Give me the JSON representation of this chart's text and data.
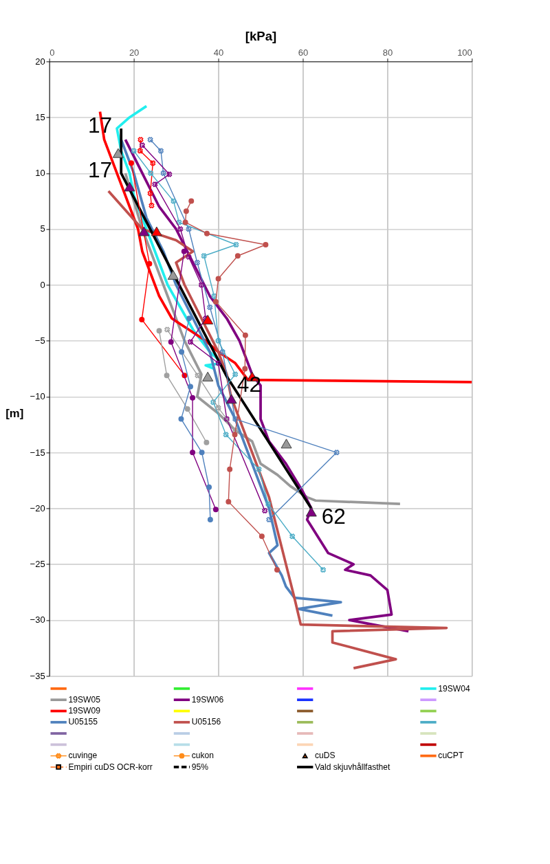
{
  "chart_data": {
    "type": "line",
    "xlabel": "[kPa]",
    "ylabel": "[m]",
    "xlim": [
      0,
      100
    ],
    "xticks": [
      0,
      20,
      40,
      60,
      80,
      100
    ],
    "ylim": [
      -35,
      20
    ],
    "yticks": [
      -35,
      -30,
      -25,
      -20,
      -15,
      -10,
      -5,
      0,
      5,
      10,
      15,
      20
    ],
    "grid": true,
    "legend": "bottom",
    "annotations": [
      {
        "text": "17",
        "x": 17,
        "y": 14
      },
      {
        "text": "17",
        "x": 17,
        "y": 10
      },
      {
        "text": "42",
        "x": 42,
        "y": -8.2
      },
      {
        "text": "62",
        "x": 62,
        "y": -20
      }
    ],
    "series": [
      {
        "color": "#ff6a13"
      },
      {
        "color": "#33ee33"
      },
      {
        "color": "#ff33ff"
      },
      {
        "name": "19SW04",
        "color": "#22eeee",
        "x": [
          23,
          19,
          16,
          17,
          19,
          20,
          22,
          24,
          26,
          28,
          31,
          34,
          38,
          41,
          37,
          39
        ],
        "values": [
          16,
          15,
          14,
          12,
          10,
          8,
          6,
          4,
          2,
          0,
          -2,
          -4,
          -6,
          -7,
          -7.2,
          -7.5
        ]
      },
      {
        "name": "19SW05",
        "color": "#999999",
        "x": [
          18,
          22,
          27,
          32,
          36,
          35,
          40,
          44,
          48,
          50,
          54,
          57,
          61,
          63,
          83
        ],
        "values": [
          10,
          5,
          0,
          -5,
          -8,
          -10,
          -11.5,
          -13,
          -14,
          -16,
          -17,
          -18,
          -19,
          -19.3,
          -19.6
        ]
      },
      {
        "name": "19SW06",
        "color": "#800080",
        "x": [
          18,
          22,
          26,
          30,
          34,
          38,
          42,
          45,
          48,
          50,
          50,
          52,
          56,
          60,
          62,
          61,
          66,
          72,
          70,
          76,
          80,
          81,
          71,
          85
        ],
        "values": [
          13,
          10,
          7,
          5,
          2,
          -1,
          -3,
          -5,
          -8,
          -9,
          -12,
          -14,
          -16,
          -18.5,
          -20,
          -21,
          -24,
          -25,
          -25.5,
          -26,
          -27.3,
          -29.5,
          -30,
          -31
        ]
      },
      {
        "color": "#1a33ff"
      },
      {
        "color": "#cc99ff"
      },
      {
        "name": "19SW09",
        "color": "#ff0000",
        "x": [
          12,
          13,
          15,
          17,
          19,
          21,
          22,
          24,
          26,
          29,
          33,
          37,
          40,
          44,
          47,
          100
        ],
        "values": [
          15.5,
          13,
          11,
          9,
          7,
          5,
          3,
          1,
          -1,
          -3,
          -4,
          -5,
          -6,
          -7,
          -8.5,
          -8.7
        ]
      },
      {
        "color": "#ffff00"
      },
      {
        "color": "#8b5a2b"
      },
      {
        "color": "#92d050"
      },
      {
        "name": "U05155",
        "color": "#4f81bd",
        "x": [
          17,
          20,
          23,
          27,
          30,
          34,
          38,
          40,
          44,
          47,
          50,
          52,
          54,
          52,
          55,
          56,
          58,
          69,
          59,
          67
        ],
        "values": [
          13,
          10,
          6,
          3,
          0,
          -3,
          -6,
          -9,
          -12,
          -15,
          -18,
          -20,
          -23.3,
          -24,
          -26,
          -27,
          -28,
          -28.4,
          -29,
          -29.6
        ]
      },
      {
        "name": "U05156",
        "color": "#c0504d",
        "x": [
          14,
          22,
          30,
          34,
          30,
          32,
          36,
          40,
          42,
          43,
          46,
          49,
          52,
          54,
          56,
          58,
          59.5,
          94,
          67,
          67,
          82,
          72
        ],
        "values": [
          8.4,
          5,
          4,
          3,
          2,
          0,
          -3,
          -6,
          -8,
          -10,
          -13,
          -16,
          -19,
          -22,
          -25,
          -28,
          -30.4,
          -30.7,
          -31,
          -32,
          -33.5,
          -34.3
        ]
      },
      {
        "color": "#9bbb59"
      },
      {
        "color": "#4bacc6"
      },
      {
        "color": "#8064a2"
      },
      {
        "color": "#b9cde5"
      },
      {
        "color": "#e6b9b8"
      },
      {
        "color": "#d7e4bd"
      },
      {
        "color": "#ccc1da"
      },
      {
        "color": "#b7dee8"
      },
      {
        "color": "#fcd5b5"
      },
      {
        "color": "#c00000"
      },
      {
        "name": "cuvinge",
        "color": "#ff8c1a",
        "marker": "cross"
      },
      {
        "name": "cukon",
        "color": "#ff8c1a",
        "marker": "circle"
      },
      {
        "name": "cuDS",
        "type": "scatter",
        "color": "#ff6a13",
        "marker": "triangle"
      },
      {
        "name": "cuCPT",
        "color": "#ff6a13"
      },
      {
        "name": "Empiri cuDS OCR-korr",
        "color": "#ff6a13",
        "marker": "square",
        "line_style": "dashed"
      },
      {
        "name": "95%",
        "color": "#000000",
        "line_style": "dashed"
      },
      {
        "name": "Vald skjuvhållfasthet",
        "color": "#000000",
        "x": [
          17,
          17,
          42,
          62
        ],
        "values": [
          14,
          10,
          -8.2,
          -20
        ]
      },
      {
        "color": "#ff0000",
        "marker": "cross",
        "x": [
          21.6,
          21.5,
          24.5,
          23.9,
          24.2
        ],
        "values": [
          13,
          12,
          10.9,
          8.2,
          7.1
        ]
      },
      {
        "color": "#4f81bd",
        "marker": "cross",
        "x": [
          23.9,
          26.4,
          27,
          33,
          35,
          38,
          41,
          44,
          68,
          52
        ],
        "values": [
          13,
          12,
          10,
          5,
          2,
          -2,
          -6,
          -12,
          -15,
          -21
        ]
      },
      {
        "color": "#4bacc6",
        "marker": "cross",
        "x": [
          20,
          24,
          29.4,
          30.7,
          44.2,
          36.6,
          39,
          40,
          44,
          38.8,
          41.8,
          49.6,
          51.8,
          57.5,
          64.8
        ],
        "values": [
          12,
          10,
          7.5,
          5.6,
          3.6,
          2.6,
          -1,
          -5,
          -8,
          -10.5,
          -13.4,
          -16.5,
          -19.6,
          -22.5,
          -25.5
        ]
      },
      {
        "color": "#800080",
        "marker": "cross",
        "x": [
          22,
          28.4,
          25,
          31,
          33,
          36,
          37,
          33.4,
          40,
          42,
          51
        ],
        "values": [
          12.5,
          9.9,
          9,
          5,
          2.5,
          0,
          -3,
          -5.1,
          -7,
          -12,
          -20.2
        ]
      },
      {
        "color": "#a0a0a0",
        "marker": "cross",
        "x": [
          27.9,
          35.1,
          40,
          44
        ],
        "values": [
          -4,
          -8.1,
          -11,
          -13
        ]
      },
      {
        "color": "#ff0000",
        "marker": "circle",
        "x": [
          19.4,
          23.7,
          21.9,
          32
        ],
        "values": [
          10.9,
          1.9,
          -3.1,
          -8.1
        ]
      },
      {
        "color": "#a0a0a0",
        "marker": "circle",
        "x": [
          26,
          27.8,
          32.7,
          37.2
        ],
        "values": [
          -4.1,
          -8.1,
          -11.1,
          -14.1
        ]
      },
      {
        "color": "#800080",
        "marker": "circle",
        "x": [
          31.9,
          28.8,
          33.9,
          33.9,
          39.4
        ],
        "values": [
          3,
          -5.1,
          -10.1,
          -15,
          -20.1
        ]
      },
      {
        "color": "#4f81bd",
        "marker": "circle",
        "x": [
          33.1,
          31.3,
          33.4,
          31.2,
          36.1,
          37.8,
          38.1
        ],
        "values": [
          -3,
          -6,
          -9.1,
          -12,
          -15,
          -18.1,
          -21
        ]
      },
      {
        "color": "#c0504d",
        "marker": "circle",
        "x": [
          33.6,
          32.4,
          32.2,
          37.3,
          51.2,
          44.6,
          40,
          39.4,
          46.4,
          46.3,
          43.9,
          42.7,
          42.4,
          50.3,
          53.9
        ],
        "values": [
          7.5,
          6.6,
          5.6,
          4.6,
          3.6,
          2.6,
          0.55,
          -1.5,
          -4.5,
          -7.5,
          -13.4,
          -16.5,
          -19.4,
          -22.5,
          -25.5
        ]
      },
      {
        "type": "scatter",
        "color": "#999999",
        "marker": "triangle",
        "x": [
          16.3,
          29.3,
          37.5,
          56.1
        ],
        "values": [
          11.8,
          0.9,
          -8.2,
          -14.2
        ]
      },
      {
        "type": "scatter",
        "color": "#800080",
        "marker": "triangle",
        "x": [
          19,
          22.4,
          43.1,
          62
        ],
        "values": [
          8.8,
          4.8,
          -10.2,
          -20.3
        ]
      },
      {
        "type": "scatter",
        "color": "#ff0000",
        "marker": "triangle",
        "x": [
          25.4,
          37.5,
          48
        ],
        "values": [
          4.8,
          -3.1,
          -8.2
        ]
      }
    ]
  }
}
